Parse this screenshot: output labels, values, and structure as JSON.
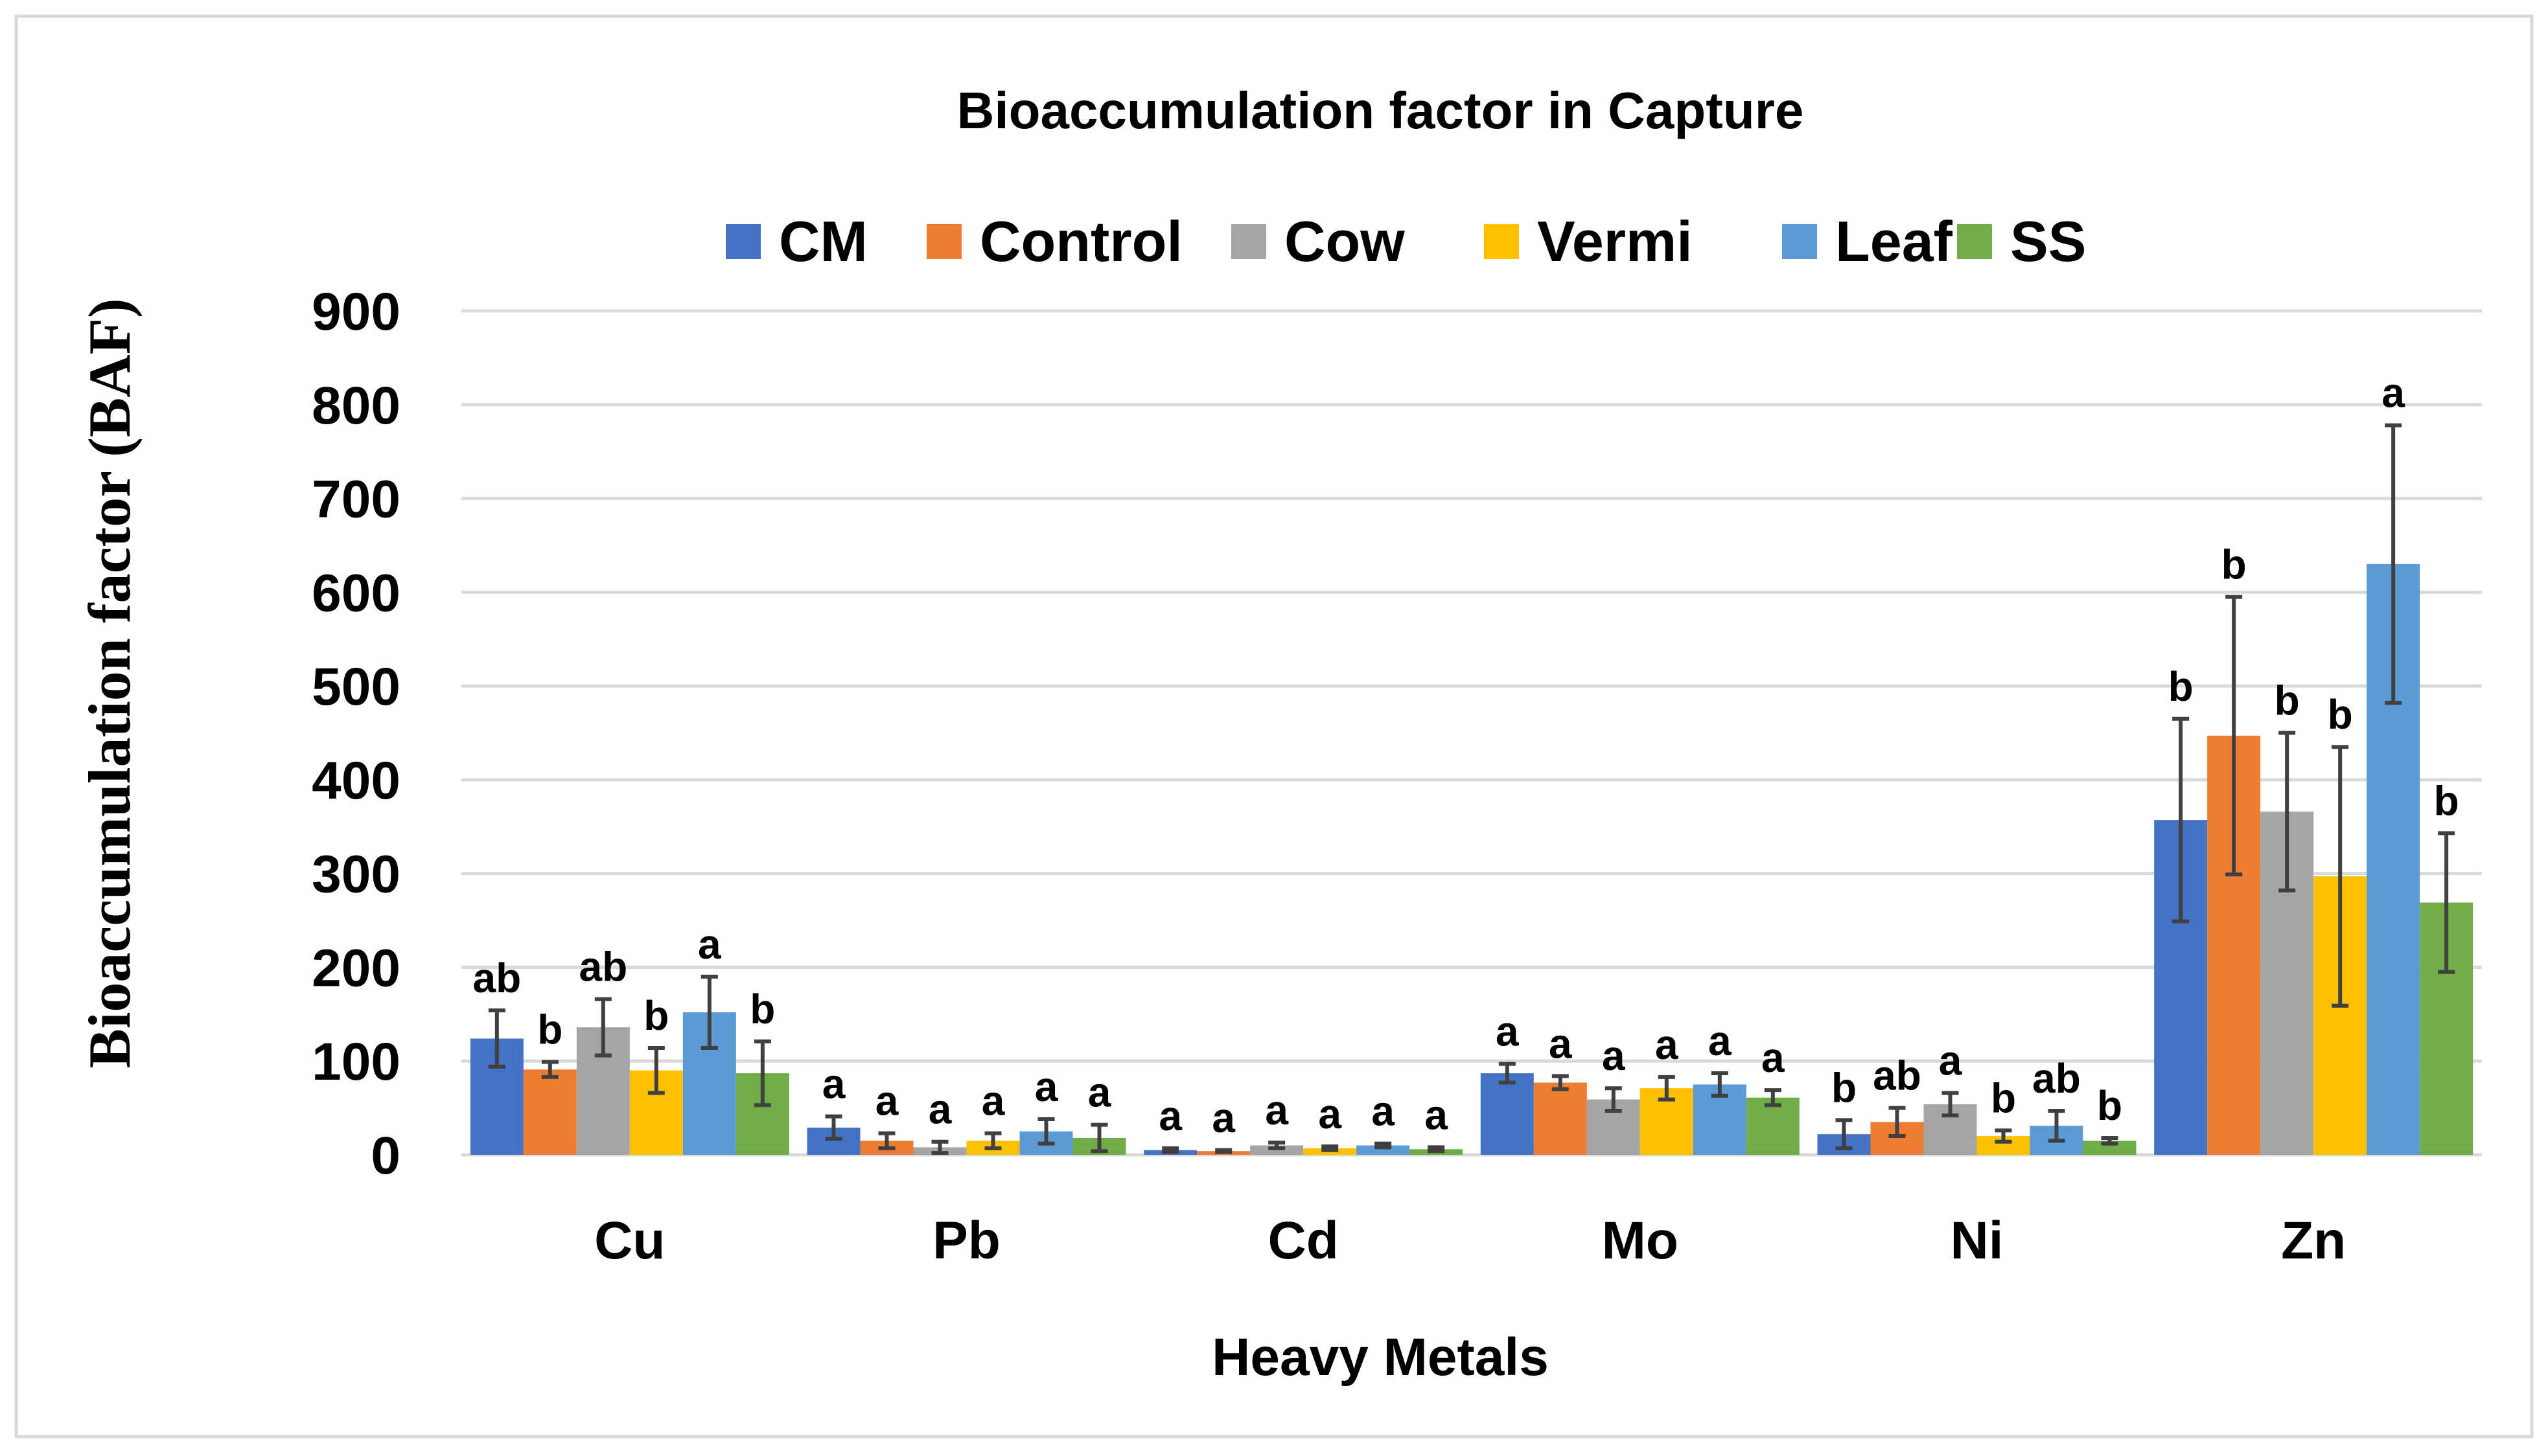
{
  "chart_data": {
    "type": "bar",
    "title": "Bioaccumulation factor in Capture",
    "xlabel": "Heavy Metals",
    "ylabel": "Bioaccumulation factor (BAF)",
    "ylim": [
      0,
      900
    ],
    "yticks": [
      0,
      100,
      200,
      300,
      400,
      500,
      600,
      700,
      800,
      900
    ],
    "grid": true,
    "legend_position": "top",
    "categories": [
      "Cu",
      "Pb",
      "Cd",
      "Mo",
      "Ni",
      "Zn"
    ],
    "series": [
      {
        "name": "CM",
        "color": "#4472C4",
        "values": [
          124,
          29,
          5,
          87,
          22,
          357
        ],
        "errors": [
          30,
          12,
          2,
          10,
          15,
          108
        ],
        "labels": [
          "ab",
          "a",
          "a",
          "a",
          "b",
          "b"
        ]
      },
      {
        "name": "Control",
        "color": "#ED7D31",
        "values": [
          91,
          15,
          4,
          77,
          35,
          447
        ],
        "errors": [
          8,
          8,
          1,
          7,
          15,
          148
        ],
        "labels": [
          "b",
          "a",
          "a",
          "a",
          "ab",
          "b"
        ]
      },
      {
        "name": "Cow",
        "color": "#A5A5A5",
        "values": [
          136,
          8,
          10,
          59,
          54,
          366
        ],
        "errors": [
          30,
          6,
          3,
          12,
          12,
          84
        ],
        "labels": [
          "ab",
          "a",
          "a",
          "a",
          "a",
          "b"
        ]
      },
      {
        "name": "Vermi",
        "color": "#FFC000",
        "values": [
          90,
          15,
          7,
          71,
          20,
          297
        ],
        "errors": [
          24,
          8,
          2,
          12,
          6,
          138
        ],
        "labels": [
          "b",
          "a",
          "a",
          "a",
          "b",
          "b"
        ]
      },
      {
        "name": "Leaf",
        "color": "#5B9BD5",
        "values": [
          152,
          25,
          10,
          75,
          31,
          630
        ],
        "errors": [
          38,
          13,
          2,
          12,
          16,
          148
        ],
        "labels": [
          "a",
          "a",
          "a",
          "a",
          "ab",
          "a"
        ]
      },
      {
        "name": "SS",
        "color": "#70AD47",
        "values": [
          87,
          18,
          6,
          61,
          15,
          269
        ],
        "errors": [
          34,
          14,
          2,
          8,
          3,
          74
        ],
        "labels": [
          "b",
          "a",
          "a",
          "a",
          "b",
          "b"
        ]
      }
    ]
  }
}
